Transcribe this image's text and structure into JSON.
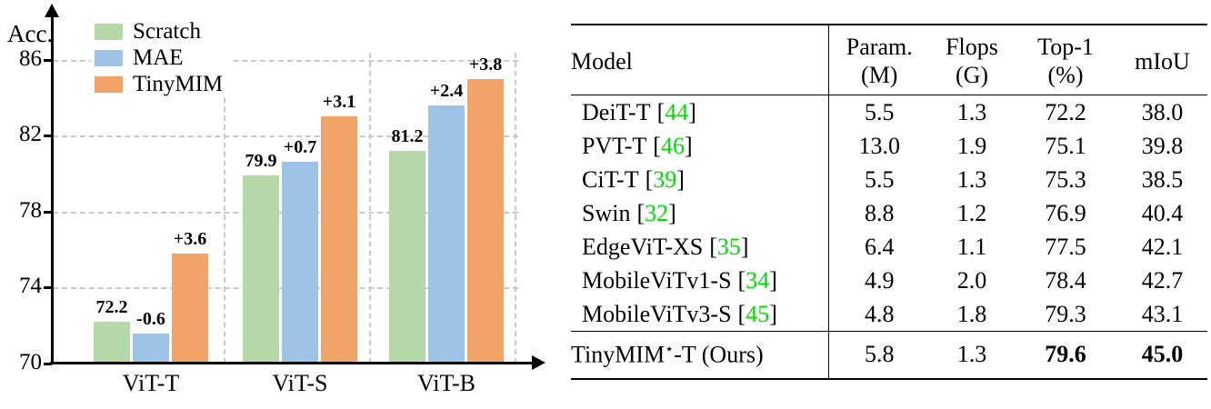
{
  "chart_data": {
    "type": "bar",
    "ylabel": "Acc.",
    "categories": [
      "ViT-T",
      "ViT-S",
      "ViT-B"
    ],
    "series": [
      {
        "name": "Scratch",
        "color": "#b6d7a8",
        "values": [
          72.2,
          79.9,
          81.2
        ]
      },
      {
        "name": "MAE",
        "color": "#9dc3e6",
        "values": [
          71.6,
          80.6,
          83.6
        ]
      },
      {
        "name": "TinyMIM",
        "color": "#f2a368",
        "values": [
          75.8,
          83.0,
          85.0
        ]
      }
    ],
    "bar_labels": [
      [
        "72.2",
        "-0.6",
        "+3.6"
      ],
      [
        "79.9",
        "+0.7",
        "+3.1"
      ],
      [
        "81.2",
        "+2.4",
        "+3.8"
      ]
    ],
    "yticks": [
      70,
      74,
      78,
      82,
      86
    ],
    "ylim": [
      70,
      87
    ],
    "grid": "dashed",
    "legend_position": "top-left"
  },
  "table": {
    "citation_color": "#00dc00",
    "bracket_open": "[",
    "bracket_close": "]",
    "headers": [
      {
        "l1": "Model"
      },
      {
        "l1": "Param.",
        "l2": "(M)"
      },
      {
        "l1": "Flops",
        "l2": "(G)"
      },
      {
        "l1": "Top-1",
        "l2": "(%)"
      },
      {
        "l1": "mIoU"
      }
    ],
    "rows": [
      {
        "model": "DeiT-T",
        "cite": "44",
        "param": "5.5",
        "flops": "1.3",
        "top1": "72.2",
        "miou": "38.0"
      },
      {
        "model": "PVT-T",
        "cite": "46",
        "param": "13.0",
        "flops": "1.9",
        "top1": "75.1",
        "miou": "39.8"
      },
      {
        "model": "CiT-T",
        "cite": "39",
        "param": "5.5",
        "flops": "1.3",
        "top1": "75.3",
        "miou": "38.5"
      },
      {
        "model": "Swin",
        "cite": "32",
        "param": "8.8",
        "flops": "1.2",
        "top1": "76.9",
        "miou": "40.4"
      },
      {
        "model": "EdgeViT-XS",
        "cite": "35",
        "param": "6.4",
        "flops": "1.1",
        "top1": "77.5",
        "miou": "42.1"
      },
      {
        "model": "MobileViTv1-S",
        "cite": "34",
        "param": "4.9",
        "flops": "2.0",
        "top1": "78.4",
        "miou": "42.7"
      },
      {
        "model": "MobileViTv3-S",
        "cite": "45",
        "param": "4.8",
        "flops": "1.8",
        "top1": "79.3",
        "miou": "43.1"
      }
    ],
    "final_row": {
      "model_pre": "TinyMIM",
      "model_star": "⋆",
      "model_post": "-T (Ours)",
      "param": "5.8",
      "flops": "1.3",
      "top1": "79.6",
      "miou": "45.0"
    }
  }
}
